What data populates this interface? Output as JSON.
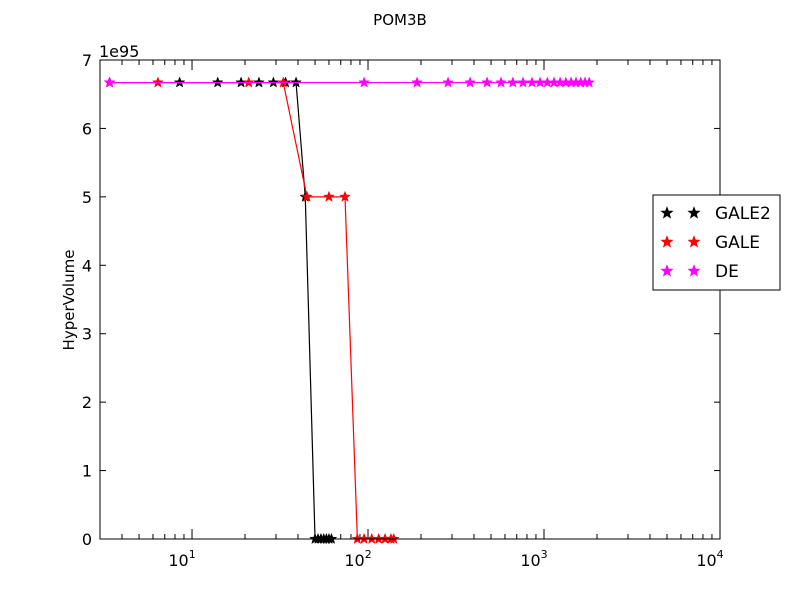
{
  "chart_data": {
    "type": "line",
    "title": "POM3B",
    "xlabel": "",
    "ylabel": "HyperVolume",
    "xscale": "log",
    "xlim": [
      3,
      10000
    ],
    "ylim": [
      0,
      7
    ],
    "y_multiplier": "1e95",
    "x_ticks": [
      {
        "value": 10,
        "base": "10",
        "exp": "1"
      },
      {
        "value": 100,
        "base": "10",
        "exp": "2"
      },
      {
        "value": 1000,
        "base": "10",
        "exp": "3"
      },
      {
        "value": 10000,
        "base": "10",
        "exp": "4"
      }
    ],
    "y_ticks": [
      {
        "value": 0,
        "label": "0"
      },
      {
        "value": 1,
        "label": "1"
      },
      {
        "value": 2,
        "label": "2"
      },
      {
        "value": 3,
        "label": "3"
      },
      {
        "value": 4,
        "label": "4"
      },
      {
        "value": 5,
        "label": "5"
      },
      {
        "value": 6,
        "label": "6"
      },
      {
        "value": 7,
        "label": "7"
      }
    ],
    "grid": false,
    "legend_position": "right",
    "series": [
      {
        "name": "GALE2",
        "color": "#000000",
        "x": [
          3.4,
          8.5,
          14,
          19,
          24,
          29,
          34,
          39,
          44,
          50,
          52,
          54,
          56,
          58,
          60,
          62
        ],
        "y": [
          6.67,
          6.67,
          6.67,
          6.67,
          6.67,
          6.67,
          6.67,
          6.67,
          5.0,
          0.0,
          0.0,
          0.0,
          0.0,
          0.0,
          0.0,
          0.0
        ]
      },
      {
        "name": "GALE",
        "color": "#ff0000",
        "x": [
          3.4,
          6.4,
          21,
          33,
          45,
          60,
          74,
          87,
          95,
          105,
          115,
          125,
          135,
          140
        ],
        "y": [
          6.67,
          6.67,
          6.67,
          6.67,
          5.0,
          5.0,
          5.0,
          0.0,
          0.0,
          0.0,
          0.0,
          0.0,
          0.0,
          0.0
        ]
      },
      {
        "name": "DE",
        "color": "#ff00ff",
        "x": [
          3.4,
          95,
          190,
          285,
          380,
          475,
          570,
          665,
          760,
          855,
          950,
          1045,
          1140,
          1235,
          1330,
          1425,
          1520,
          1615,
          1710,
          1805
        ],
        "y": [
          6.67,
          6.67,
          6.67,
          6.67,
          6.67,
          6.67,
          6.67,
          6.67,
          6.67,
          6.67,
          6.67,
          6.67,
          6.67,
          6.67,
          6.67,
          6.67,
          6.67,
          6.67,
          6.67,
          6.67
        ]
      }
    ]
  }
}
